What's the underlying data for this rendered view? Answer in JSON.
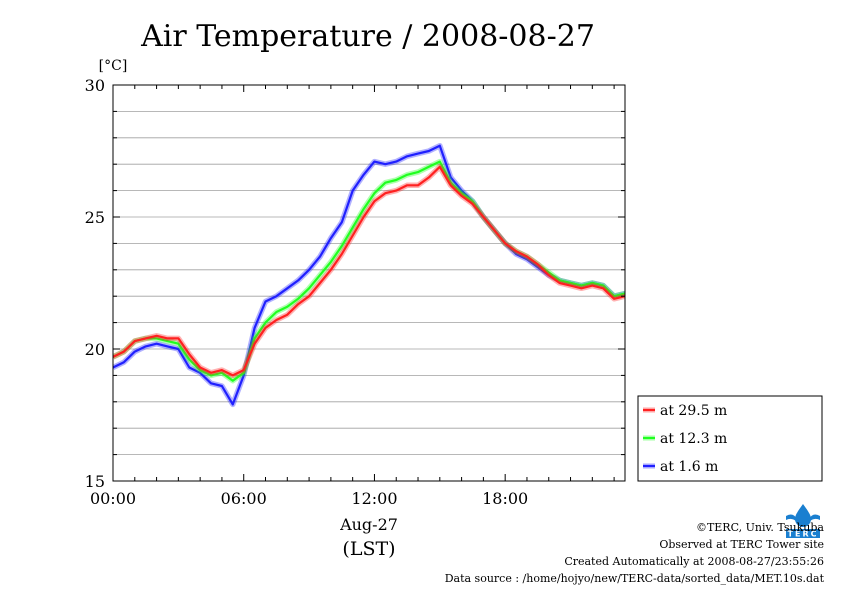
{
  "chart_data": {
    "type": "line",
    "title": "Air Temperature / 2008-08-27",
    "ylabel": "[°C]",
    "xlabel": "Aug-27",
    "xlabel2": "(LST)",
    "xlim": [
      0,
      23.5
    ],
    "ylim": [
      15,
      30
    ],
    "x_ticks": [
      {
        "value": 0,
        "label": "00:00"
      },
      {
        "value": 6,
        "label": "06:00"
      },
      {
        "value": 12,
        "label": "12:00"
      },
      {
        "value": 18,
        "label": "18:00"
      }
    ],
    "y_ticks": [
      {
        "value": 15,
        "label": "15"
      },
      {
        "value": 20,
        "label": "20"
      },
      {
        "value": 25,
        "label": "25"
      },
      {
        "value": 30,
        "label": "30"
      }
    ],
    "grid": true,
    "legend_position": "bottom-right-outside",
    "series": [
      {
        "name": "at 29.5 m",
        "color": "#ff2020",
        "x": [
          0,
          0.5,
          1,
          1.5,
          2,
          2.5,
          3,
          3.5,
          4,
          4.5,
          5,
          5.5,
          6,
          6.5,
          7,
          7.5,
          8,
          8.5,
          9,
          9.5,
          10,
          10.5,
          11,
          11.5,
          12,
          12.5,
          13,
          13.5,
          14,
          14.5,
          15,
          15.5,
          16,
          16.5,
          17,
          17.5,
          18,
          18.5,
          19,
          19.5,
          20,
          20.5,
          21,
          21.5,
          22,
          22.5,
          23,
          23.5
        ],
        "y": [
          19.7,
          19.9,
          20.3,
          20.4,
          20.5,
          20.4,
          20.4,
          19.8,
          19.3,
          19.1,
          19.2,
          19.0,
          19.2,
          20.2,
          20.8,
          21.1,
          21.3,
          21.7,
          22.0,
          22.5,
          23.0,
          23.6,
          24.3,
          25.0,
          25.6,
          25.9,
          26.0,
          26.2,
          26.2,
          26.5,
          26.9,
          26.2,
          25.8,
          25.5,
          25.0,
          24.5,
          24.0,
          23.7,
          23.5,
          23.2,
          22.8,
          22.5,
          22.4,
          22.3,
          22.4,
          22.3,
          21.9,
          22.0
        ]
      },
      {
        "name": "at 12.3 m",
        "color": "#20ff20",
        "x": [
          0,
          0.5,
          1,
          1.5,
          2,
          2.5,
          3,
          3.5,
          4,
          4.5,
          5,
          5.5,
          6,
          6.5,
          7,
          7.5,
          8,
          8.5,
          9,
          9.5,
          10,
          10.5,
          11,
          11.5,
          12,
          12.5,
          13,
          13.5,
          14,
          14.5,
          15,
          15.5,
          16,
          16.5,
          17,
          17.5,
          18,
          18.5,
          19,
          19.5,
          20,
          20.5,
          21,
          21.5,
          22,
          22.5,
          23,
          23.5
        ],
        "y": [
          19.7,
          19.9,
          20.3,
          20.4,
          20.4,
          20.3,
          20.2,
          19.6,
          19.2,
          19.0,
          19.1,
          18.8,
          19.1,
          20.4,
          21.0,
          21.4,
          21.6,
          21.9,
          22.3,
          22.8,
          23.3,
          23.9,
          24.6,
          25.3,
          25.9,
          26.3,
          26.4,
          26.6,
          26.7,
          26.9,
          27.1,
          26.3,
          25.9,
          25.6,
          25.0,
          24.5,
          24.0,
          23.7,
          23.5,
          23.2,
          22.9,
          22.6,
          22.5,
          22.4,
          22.5,
          22.4,
          22.0,
          22.1
        ]
      },
      {
        "name": "at 1.6 m",
        "color": "#2020ff",
        "x": [
          0,
          0.5,
          1,
          1.5,
          2,
          2.5,
          3,
          3.5,
          4,
          4.5,
          5,
          5.5,
          6,
          6.5,
          7,
          7.5,
          8,
          8.5,
          9,
          9.5,
          10,
          10.5,
          11,
          11.5,
          12,
          12.5,
          13,
          13.5,
          14,
          14.5,
          15,
          15.5,
          16,
          16.5,
          17,
          17.5,
          18,
          18.5,
          19,
          19.5,
          20,
          20.5,
          21,
          21.5,
          22,
          22.5,
          23,
          23.5
        ],
        "y": [
          19.3,
          19.5,
          19.9,
          20.1,
          20.2,
          20.1,
          20.0,
          19.3,
          19.1,
          18.7,
          18.6,
          17.9,
          19.0,
          20.8,
          21.8,
          22.0,
          22.3,
          22.6,
          23.0,
          23.5,
          24.2,
          24.8,
          26.0,
          26.6,
          27.1,
          27.0,
          27.1,
          27.3,
          27.4,
          27.5,
          27.7,
          26.5,
          26.0,
          25.6,
          25.0,
          24.5,
          24.0,
          23.6,
          23.4,
          23.1,
          22.8,
          22.6,
          22.5,
          22.4,
          22.5,
          22.4,
          22.0,
          22.1
        ]
      }
    ]
  },
  "footer": {
    "copyright": "©TERC, Univ. Tsukuba",
    "observed": "Observed at TERC Tower site",
    "created": "Created Automatically at 2008-08-27/23:55:26",
    "source": "Data source : /home/hojyo/new/TERC-data/sorted_data/MET.10s.dat"
  },
  "logo": {
    "text": "TERC",
    "color": "#1a7fd0"
  }
}
